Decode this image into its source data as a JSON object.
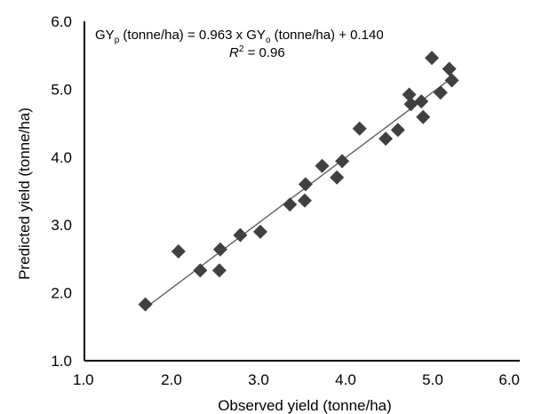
{
  "chart_data": {
    "type": "scatter",
    "title": "",
    "xlabel": "Observed yield (tonne/ha)",
    "ylabel": "Predicted yield (tonne/ha)",
    "xlim": [
      1.0,
      6.0
    ],
    "ylim": [
      1.0,
      6.0
    ],
    "x_ticks": [
      "1.0",
      "2.0",
      "3.0",
      "4.0",
      "5.0",
      "6.0"
    ],
    "y_ticks": [
      "1.0",
      "2.0",
      "3.0",
      "4.0",
      "5.0",
      "6.0"
    ],
    "grid": false,
    "legend": "none",
    "marker": "diamond",
    "marker_color": "#404040",
    "line_color": "#555555",
    "fit_line": {
      "slope": 0.963,
      "intercept": 0.14,
      "x_range": [
        1.7,
        5.22
      ]
    },
    "annotation": {
      "equation_parts": [
        "GY",
        "p",
        " (tonne/ha) = 0.963 x GY",
        "o",
        " (tonne/ha) + 0.140"
      ],
      "r2_parts": [
        "R",
        "2",
        " = 0.96"
      ]
    },
    "points": [
      {
        "x": 1.7,
        "y": 1.83
      },
      {
        "x": 2.08,
        "y": 2.61
      },
      {
        "x": 2.33,
        "y": 2.33
      },
      {
        "x": 2.55,
        "y": 2.33
      },
      {
        "x": 2.56,
        "y": 2.64
      },
      {
        "x": 2.79,
        "y": 2.85
      },
      {
        "x": 3.02,
        "y": 2.9
      },
      {
        "x": 3.36,
        "y": 3.3
      },
      {
        "x": 3.53,
        "y": 3.36
      },
      {
        "x": 3.54,
        "y": 3.6
      },
      {
        "x": 3.73,
        "y": 3.87
      },
      {
        "x": 3.9,
        "y": 3.7
      },
      {
        "x": 3.96,
        "y": 3.94
      },
      {
        "x": 4.16,
        "y": 4.42
      },
      {
        "x": 4.46,
        "y": 4.27
      },
      {
        "x": 4.6,
        "y": 4.4
      },
      {
        "x": 4.73,
        "y": 4.92
      },
      {
        "x": 4.75,
        "y": 4.78
      },
      {
        "x": 4.87,
        "y": 4.82
      },
      {
        "x": 4.89,
        "y": 4.59
      },
      {
        "x": 4.99,
        "y": 5.46
      },
      {
        "x": 5.09,
        "y": 4.95
      },
      {
        "x": 5.19,
        "y": 5.3
      },
      {
        "x": 5.22,
        "y": 5.13
      }
    ]
  }
}
